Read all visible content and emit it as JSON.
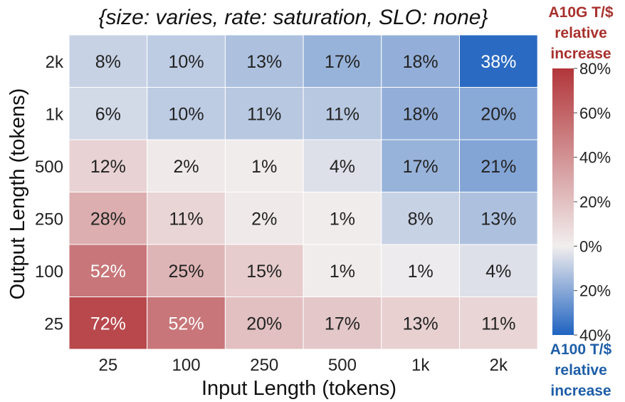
{
  "chart_data": {
    "type": "heatmap",
    "title": "{size: varies, rate: saturation, SLO: none}",
    "xlabel": "Input Length (tokens)",
    "ylabel": "Output Length (tokens)",
    "x_categories": [
      "25",
      "100",
      "250",
      "500",
      "1k",
      "2k"
    ],
    "y_categories": [
      "2k",
      "1k",
      "500",
      "250",
      "100",
      "25"
    ],
    "cells": [
      [
        {
          "label": "8%",
          "value": -8
        },
        {
          "label": "10%",
          "value": -10
        },
        {
          "label": "13%",
          "value": -13
        },
        {
          "label": "17%",
          "value": -17
        },
        {
          "label": "18%",
          "value": -18
        },
        {
          "label": "38%",
          "value": -38
        }
      ],
      [
        {
          "label": "6%",
          "value": -6
        },
        {
          "label": "10%",
          "value": -10
        },
        {
          "label": "11%",
          "value": -11
        },
        {
          "label": "11%",
          "value": -11
        },
        {
          "label": "18%",
          "value": -18
        },
        {
          "label": "20%",
          "value": -20
        }
      ],
      [
        {
          "label": "12%",
          "value": 12
        },
        {
          "label": "2%",
          "value": 2
        },
        {
          "label": "1%",
          "value": 1
        },
        {
          "label": "4%",
          "value": -4
        },
        {
          "label": "17%",
          "value": -17
        },
        {
          "label": "21%",
          "value": -21
        }
      ],
      [
        {
          "label": "28%",
          "value": 28
        },
        {
          "label": "11%",
          "value": 11
        },
        {
          "label": "2%",
          "value": 2
        },
        {
          "label": "1%",
          "value": 1
        },
        {
          "label": "8%",
          "value": -8
        },
        {
          "label": "13%",
          "value": -13
        }
      ],
      [
        {
          "label": "52%",
          "value": 52
        },
        {
          "label": "25%",
          "value": 25
        },
        {
          "label": "15%",
          "value": 15
        },
        {
          "label": "1%",
          "value": 1
        },
        {
          "label": "1%",
          "value": -1
        },
        {
          "label": "4%",
          "value": -4
        }
      ],
      [
        {
          "label": "72%",
          "value": 72
        },
        {
          "label": "52%",
          "value": 52
        },
        {
          "label": "20%",
          "value": 20
        },
        {
          "label": "17%",
          "value": 17
        },
        {
          "label": "13%",
          "value": 13
        },
        {
          "label": "11%",
          "value": 11
        }
      ]
    ],
    "colorbar": {
      "min": -40,
      "max": 80,
      "ticks": [
        {
          "value": 80,
          "label": "80%"
        },
        {
          "value": 60,
          "label": "60%"
        },
        {
          "value": 40,
          "label": "40%"
        },
        {
          "value": 20,
          "label": "20%"
        },
        {
          "value": 0,
          "label": "0%"
        },
        {
          "value": -20,
          "label": "20%"
        },
        {
          "value": -40,
          "label": "40%"
        }
      ],
      "top_label": [
        "A10G T/$",
        "relative",
        "increase"
      ],
      "bottom_label": [
        "A100 T/$",
        "relative",
        "increase"
      ]
    },
    "colors": {
      "positive_max": "#b2363a",
      "neutral": "#f2eeee",
      "negative_max": "#1f63c0"
    }
  }
}
